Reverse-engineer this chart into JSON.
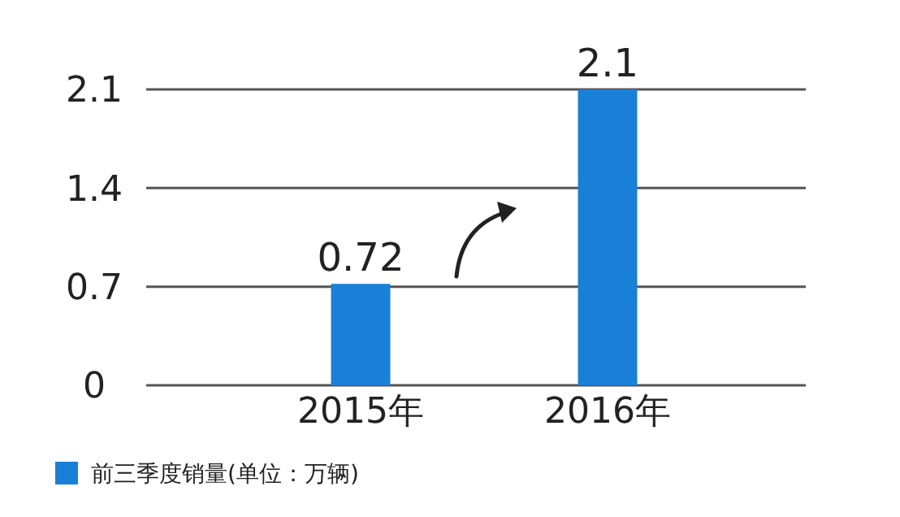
{
  "chart_data": {
    "type": "bar",
    "categories": [
      "2015年",
      "2016年"
    ],
    "series": [
      {
        "name": "前三季度销量(单位：万辆)",
        "color": "#1a7fd6",
        "values": [
          0.72,
          2.1
        ]
      }
    ],
    "ylim": [
      0,
      2.1
    ],
    "yticks": [
      0,
      0.7,
      1.4,
      2.1
    ],
    "grid": "y",
    "legend": "bottom left",
    "data_labels": true
  }
}
